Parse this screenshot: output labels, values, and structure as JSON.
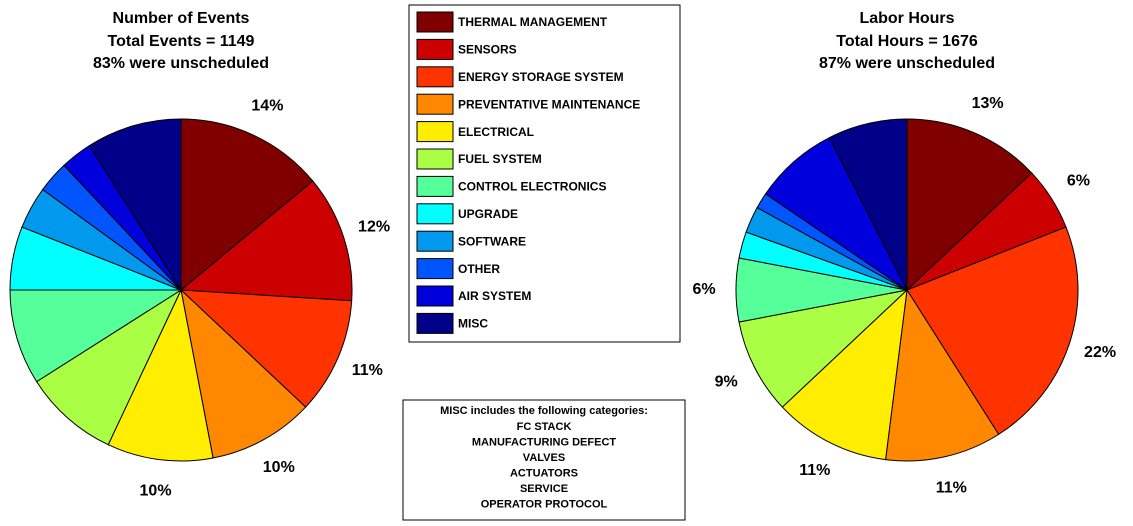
{
  "chart_data": [
    {
      "type": "pie",
      "title": "Number of Events",
      "subtitle": [
        "Total Events = 1149",
        "83% were unscheduled"
      ],
      "values": [
        14,
        12,
        11,
        10,
        10,
        9,
        9,
        6,
        4,
        3,
        3,
        9
      ],
      "value_labels": [
        "14%",
        "12%",
        "11%",
        "10%",
        "10%",
        null,
        null,
        null,
        null,
        null,
        null,
        null
      ]
    },
    {
      "type": "pie",
      "title": "Labor Hours",
      "subtitle": [
        "Total Hours = 1676",
        "87% were unscheduled"
      ],
      "values": [
        13,
        6,
        22,
        11,
        11,
        9,
        6,
        2.5,
        2.5,
        1.5,
        8,
        7.5
      ],
      "value_labels": [
        "13%",
        "6%",
        "22%",
        "11%",
        "11%",
        "9%",
        "6%",
        null,
        null,
        null,
        null,
        null
      ]
    }
  ],
  "legend": {
    "categories": [
      "THERMAL MANAGEMENT",
      "SENSORS",
      "ENERGY STORAGE SYSTEM",
      "PREVENTATIVE MAINTENANCE",
      "ELECTRICAL",
      "FUEL SYSTEM",
      "CONTROL ELECTRONICS",
      "UPGRADE",
      "SOFTWARE",
      "OTHER",
      "AIR SYSTEM",
      "MISC"
    ],
    "colors": [
      "#800000",
      "#cc0000",
      "#ff3300",
      "#ff8800",
      "#ffee00",
      "#aaff44",
      "#55ff99",
      "#00ffff",
      "#0099ee",
      "#0055ff",
      "#0000dd",
      "#000088"
    ]
  },
  "note": {
    "title": "MISC includes the following categories:",
    "lines": [
      "FC STACK",
      "MANUFACTURING DEFECT",
      "VALVES",
      "ACTUATORS",
      "SERVICE",
      "OPERATOR PROTOCOL"
    ]
  }
}
